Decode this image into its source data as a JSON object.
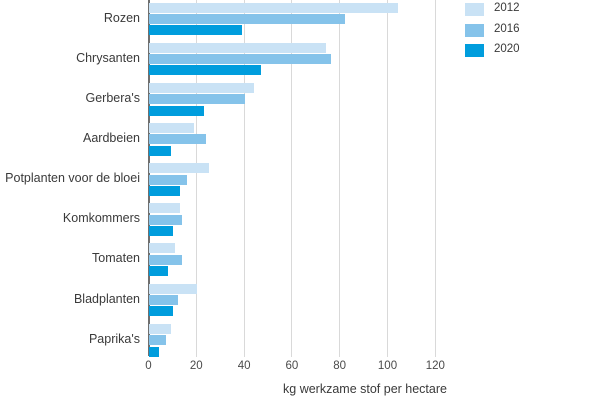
{
  "chart_data": {
    "type": "bar",
    "orientation": "horizontal",
    "title": "",
    "xlabel": "kg werkzame stof per hectare",
    "ylabel": "",
    "xlim": [
      0,
      130
    ],
    "x_ticks": [
      0,
      20,
      40,
      60,
      80,
      100,
      120
    ],
    "grid": true,
    "legend_position": "top-right",
    "categories": [
      "Rozen",
      "Chrysanten",
      "Gerbera's",
      "Aardbeien",
      "Potplanten voor de bloei",
      "Komkommers",
      "Tomaten",
      "Bladplanten",
      "Paprika's"
    ],
    "series": [
      {
        "name": "2012",
        "color": "#c9e2f5",
        "values": [
          104,
          74,
          44,
          19,
          25,
          13,
          11,
          20,
          9
        ]
      },
      {
        "name": "2016",
        "color": "#85c3ea",
        "values": [
          82,
          76,
          40,
          24,
          16,
          14,
          14,
          12,
          7
        ]
      },
      {
        "name": "2020",
        "color": "#009ddd",
        "values": [
          39,
          47,
          23,
          9,
          13,
          10,
          8,
          10,
          4
        ]
      }
    ]
  },
  "colors": {
    "gridline": "#d9d9d9",
    "axis_line": "#6f6f6f",
    "text": "#3a3a3a"
  }
}
